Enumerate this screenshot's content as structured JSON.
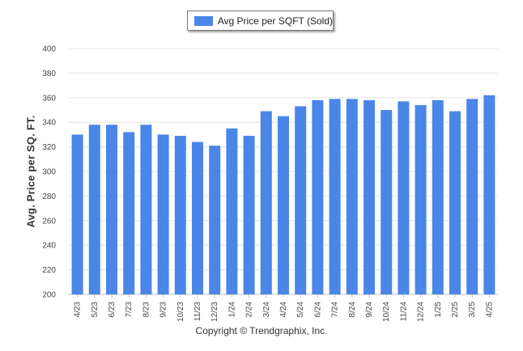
{
  "chart_data": {
    "type": "bar",
    "title": "",
    "xlabel": "",
    "ylabel": "Avg. Price per SQ. FT.",
    "ylim": [
      200,
      400
    ],
    "yticks": [
      200,
      220,
      240,
      260,
      280,
      300,
      320,
      340,
      360,
      380,
      400
    ],
    "grid": true,
    "legend_position": "top-center",
    "categories": [
      "4/23",
      "5/23",
      "6/23",
      "7/23",
      "8/23",
      "9/23",
      "10/23",
      "11/23",
      "12/23",
      "1/24",
      "2/24",
      "3/24",
      "4/24",
      "5/24",
      "6/24",
      "7/24",
      "8/24",
      "9/24",
      "10/24",
      "11/24",
      "12/24",
      "1/25",
      "2/25",
      "3/25",
      "4/25"
    ],
    "series": [
      {
        "name": "Avg Price per SQFT (Sold)",
        "color": "#4a86e8",
        "values": [
          330,
          338,
          338,
          332,
          338,
          330,
          329,
          324,
          321,
          335,
          329,
          349,
          345,
          353,
          358,
          359,
          359,
          358,
          350,
          357,
          354,
          358,
          349,
          359,
          362
        ]
      }
    ]
  },
  "footer": {
    "copyright": "Copyright © Trendgraphix, Inc."
  }
}
